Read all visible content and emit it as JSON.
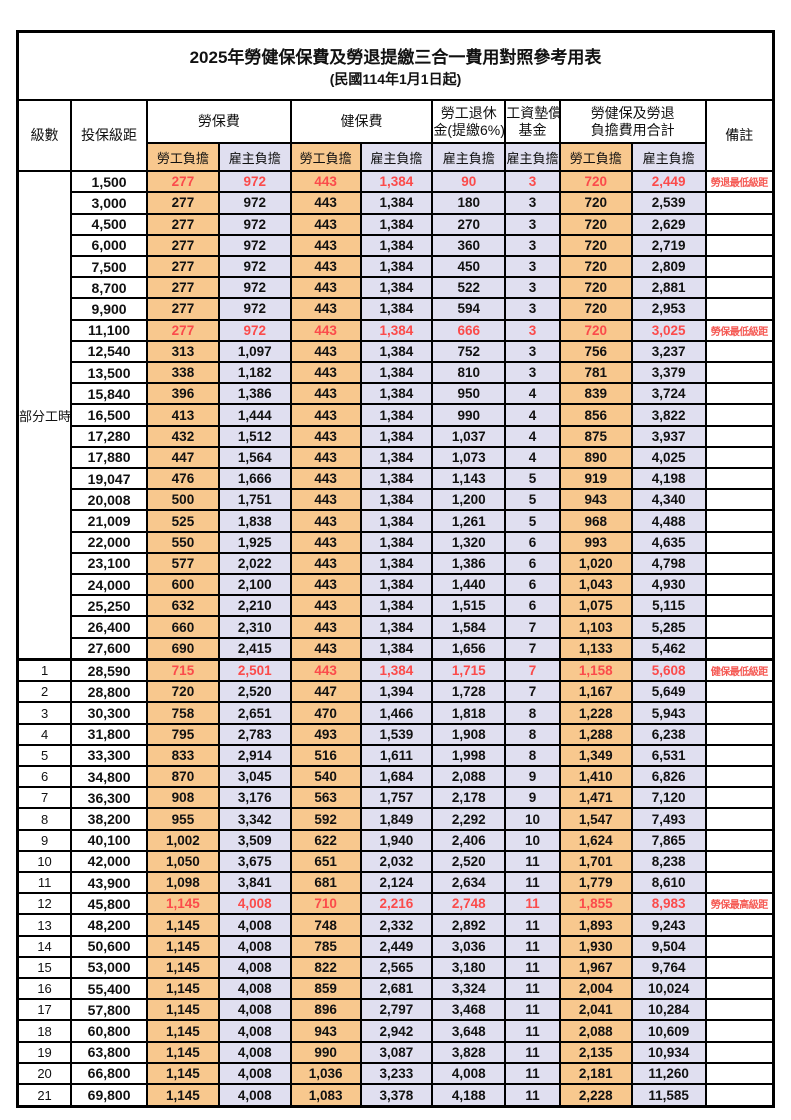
{
  "title": "2025年勞健保保費及勞退提繳三合一費用對照參考用表",
  "subtitle": "(民國114年1月1日起)",
  "header": {
    "level": "級數",
    "bracket": "投保級距",
    "labor_insurance": "勞保費",
    "health_insurance": "健保費",
    "pension_line1": "勞工退休",
    "pension_line2": "金(提繳6%)",
    "wage_fund_line1": "工資墊償",
    "wage_fund_line2": "基金",
    "total_line1": "勞健保及勞退",
    "total_line2": "負擔費用合計",
    "remark": "備註",
    "employee": "勞工負擔",
    "employer": "雇主負擔"
  },
  "colors": {
    "employee_bg": "#F8C88E",
    "employer_bg": "#E0DFF0",
    "highlight_text": "#FB4B4B",
    "remark_text": "#F55B55",
    "border": "#000000"
  },
  "part_time_label": "部分工時",
  "part_time_span": 23,
  "rows": [
    {
      "level": "",
      "bracket": "1,500",
      "values": [
        "277",
        "972",
        "443",
        "1,384",
        "90",
        "3",
        "720",
        "2,449"
      ],
      "remark": "勞退最低級距",
      "highlight": true
    },
    {
      "level": "",
      "bracket": "3,000",
      "values": [
        "277",
        "972",
        "443",
        "1,384",
        "180",
        "3",
        "720",
        "2,539"
      ],
      "remark": "",
      "highlight": false
    },
    {
      "level": "",
      "bracket": "4,500",
      "values": [
        "277",
        "972",
        "443",
        "1,384",
        "270",
        "3",
        "720",
        "2,629"
      ],
      "remark": "",
      "highlight": false
    },
    {
      "level": "",
      "bracket": "6,000",
      "values": [
        "277",
        "972",
        "443",
        "1,384",
        "360",
        "3",
        "720",
        "2,719"
      ],
      "remark": "",
      "highlight": false
    },
    {
      "level": "",
      "bracket": "7,500",
      "values": [
        "277",
        "972",
        "443",
        "1,384",
        "450",
        "3",
        "720",
        "2,809"
      ],
      "remark": "",
      "highlight": false
    },
    {
      "level": "",
      "bracket": "8,700",
      "values": [
        "277",
        "972",
        "443",
        "1,384",
        "522",
        "3",
        "720",
        "2,881"
      ],
      "remark": "",
      "highlight": false
    },
    {
      "level": "",
      "bracket": "9,900",
      "values": [
        "277",
        "972",
        "443",
        "1,384",
        "594",
        "3",
        "720",
        "2,953"
      ],
      "remark": "",
      "highlight": false
    },
    {
      "level": "",
      "bracket": "11,100",
      "values": [
        "277",
        "972",
        "443",
        "1,384",
        "666",
        "3",
        "720",
        "3,025"
      ],
      "remark": "勞保最低級距",
      "highlight": true
    },
    {
      "level": "",
      "bracket": "12,540",
      "values": [
        "313",
        "1,097",
        "443",
        "1,384",
        "752",
        "3",
        "756",
        "3,237"
      ],
      "remark": "",
      "highlight": false
    },
    {
      "level": "",
      "bracket": "13,500",
      "values": [
        "338",
        "1,182",
        "443",
        "1,384",
        "810",
        "3",
        "781",
        "3,379"
      ],
      "remark": "",
      "highlight": false
    },
    {
      "level": "",
      "bracket": "15,840",
      "values": [
        "396",
        "1,386",
        "443",
        "1,384",
        "950",
        "4",
        "839",
        "3,724"
      ],
      "remark": "",
      "highlight": false
    },
    {
      "level": "",
      "bracket": "16,500",
      "values": [
        "413",
        "1,444",
        "443",
        "1,384",
        "990",
        "4",
        "856",
        "3,822"
      ],
      "remark": "",
      "highlight": false
    },
    {
      "level": "",
      "bracket": "17,280",
      "values": [
        "432",
        "1,512",
        "443",
        "1,384",
        "1,037",
        "4",
        "875",
        "3,937"
      ],
      "remark": "",
      "highlight": false
    },
    {
      "level": "",
      "bracket": "17,880",
      "values": [
        "447",
        "1,564",
        "443",
        "1,384",
        "1,073",
        "4",
        "890",
        "4,025"
      ],
      "remark": "",
      "highlight": false
    },
    {
      "level": "",
      "bracket": "19,047",
      "values": [
        "476",
        "1,666",
        "443",
        "1,384",
        "1,143",
        "5",
        "919",
        "4,198"
      ],
      "remark": "",
      "highlight": false
    },
    {
      "level": "",
      "bracket": "20,008",
      "values": [
        "500",
        "1,751",
        "443",
        "1,384",
        "1,200",
        "5",
        "943",
        "4,340"
      ],
      "remark": "",
      "highlight": false
    },
    {
      "level": "",
      "bracket": "21,009",
      "values": [
        "525",
        "1,838",
        "443",
        "1,384",
        "1,261",
        "5",
        "968",
        "4,488"
      ],
      "remark": "",
      "highlight": false
    },
    {
      "level": "",
      "bracket": "22,000",
      "values": [
        "550",
        "1,925",
        "443",
        "1,384",
        "1,320",
        "6",
        "993",
        "4,635"
      ],
      "remark": "",
      "highlight": false
    },
    {
      "level": "",
      "bracket": "23,100",
      "values": [
        "577",
        "2,022",
        "443",
        "1,384",
        "1,386",
        "6",
        "1,020",
        "4,798"
      ],
      "remark": "",
      "highlight": false
    },
    {
      "level": "",
      "bracket": "24,000",
      "values": [
        "600",
        "2,100",
        "443",
        "1,384",
        "1,440",
        "6",
        "1,043",
        "4,930"
      ],
      "remark": "",
      "highlight": false
    },
    {
      "level": "",
      "bracket": "25,250",
      "values": [
        "632",
        "2,210",
        "443",
        "1,384",
        "1,515",
        "6",
        "1,075",
        "5,115"
      ],
      "remark": "",
      "highlight": false
    },
    {
      "level": "",
      "bracket": "26,400",
      "values": [
        "660",
        "2,310",
        "443",
        "1,384",
        "1,584",
        "7",
        "1,103",
        "5,285"
      ],
      "remark": "",
      "highlight": false
    },
    {
      "level": "",
      "bracket": "27,600",
      "values": [
        "690",
        "2,415",
        "443",
        "1,384",
        "1,656",
        "7",
        "1,133",
        "5,462"
      ],
      "remark": "",
      "highlight": false
    },
    {
      "level": "1",
      "bracket": "28,590",
      "values": [
        "715",
        "2,501",
        "443",
        "1,384",
        "1,715",
        "7",
        "1,158",
        "5,608"
      ],
      "remark": "健保最低級距",
      "highlight": true,
      "group_break": true
    },
    {
      "level": "2",
      "bracket": "28,800",
      "values": [
        "720",
        "2,520",
        "447",
        "1,394",
        "1,728",
        "7",
        "1,167",
        "5,649"
      ],
      "remark": "",
      "highlight": false
    },
    {
      "level": "3",
      "bracket": "30,300",
      "values": [
        "758",
        "2,651",
        "470",
        "1,466",
        "1,818",
        "8",
        "1,228",
        "5,943"
      ],
      "remark": "",
      "highlight": false
    },
    {
      "level": "4",
      "bracket": "31,800",
      "values": [
        "795",
        "2,783",
        "493",
        "1,539",
        "1,908",
        "8",
        "1,288",
        "6,238"
      ],
      "remark": "",
      "highlight": false
    },
    {
      "level": "5",
      "bracket": "33,300",
      "values": [
        "833",
        "2,914",
        "516",
        "1,611",
        "1,998",
        "8",
        "1,349",
        "6,531"
      ],
      "remark": "",
      "highlight": false
    },
    {
      "level": "6",
      "bracket": "34,800",
      "values": [
        "870",
        "3,045",
        "540",
        "1,684",
        "2,088",
        "9",
        "1,410",
        "6,826"
      ],
      "remark": "",
      "highlight": false
    },
    {
      "level": "7",
      "bracket": "36,300",
      "values": [
        "908",
        "3,176",
        "563",
        "1,757",
        "2,178",
        "9",
        "1,471",
        "7,120"
      ],
      "remark": "",
      "highlight": false
    },
    {
      "level": "8",
      "bracket": "38,200",
      "values": [
        "955",
        "3,342",
        "592",
        "1,849",
        "2,292",
        "10",
        "1,547",
        "7,493"
      ],
      "remark": "",
      "highlight": false
    },
    {
      "level": "9",
      "bracket": "40,100",
      "values": [
        "1,002",
        "3,509",
        "622",
        "1,940",
        "2,406",
        "10",
        "1,624",
        "7,865"
      ],
      "remark": "",
      "highlight": false
    },
    {
      "level": "10",
      "bracket": "42,000",
      "values": [
        "1,050",
        "3,675",
        "651",
        "2,032",
        "2,520",
        "11",
        "1,701",
        "8,238"
      ],
      "remark": "",
      "highlight": false
    },
    {
      "level": "11",
      "bracket": "43,900",
      "values": [
        "1,098",
        "3,841",
        "681",
        "2,124",
        "2,634",
        "11",
        "1,779",
        "8,610"
      ],
      "remark": "",
      "highlight": false
    },
    {
      "level": "12",
      "bracket": "45,800",
      "values": [
        "1,145",
        "4,008",
        "710",
        "2,216",
        "2,748",
        "11",
        "1,855",
        "8,983"
      ],
      "remark": "勞保最高級距",
      "highlight": true
    },
    {
      "level": "13",
      "bracket": "48,200",
      "values": [
        "1,145",
        "4,008",
        "748",
        "2,332",
        "2,892",
        "11",
        "1,893",
        "9,243"
      ],
      "remark": "",
      "highlight": false
    },
    {
      "level": "14",
      "bracket": "50,600",
      "values": [
        "1,145",
        "4,008",
        "785",
        "2,449",
        "3,036",
        "11",
        "1,930",
        "9,504"
      ],
      "remark": "",
      "highlight": false
    },
    {
      "level": "15",
      "bracket": "53,000",
      "values": [
        "1,145",
        "4,008",
        "822",
        "2,565",
        "3,180",
        "11",
        "1,967",
        "9,764"
      ],
      "remark": "",
      "highlight": false
    },
    {
      "level": "16",
      "bracket": "55,400",
      "values": [
        "1,145",
        "4,008",
        "859",
        "2,681",
        "3,324",
        "11",
        "2,004",
        "10,024"
      ],
      "remark": "",
      "highlight": false
    },
    {
      "level": "17",
      "bracket": "57,800",
      "values": [
        "1,145",
        "4,008",
        "896",
        "2,797",
        "3,468",
        "11",
        "2,041",
        "10,284"
      ],
      "remark": "",
      "highlight": false
    },
    {
      "level": "18",
      "bracket": "60,800",
      "values": [
        "1,145",
        "4,008",
        "943",
        "2,942",
        "3,648",
        "11",
        "2,088",
        "10,609"
      ],
      "remark": "",
      "highlight": false
    },
    {
      "level": "19",
      "bracket": "63,800",
      "values": [
        "1,145",
        "4,008",
        "990",
        "3,087",
        "3,828",
        "11",
        "2,135",
        "10,934"
      ],
      "remark": "",
      "highlight": false
    },
    {
      "level": "20",
      "bracket": "66,800",
      "values": [
        "1,145",
        "4,008",
        "1,036",
        "3,233",
        "4,008",
        "11",
        "2,181",
        "11,260"
      ],
      "remark": "",
      "highlight": false
    },
    {
      "level": "21",
      "bracket": "69,800",
      "values": [
        "1,145",
        "4,008",
        "1,083",
        "3,378",
        "4,188",
        "11",
        "2,228",
        "11,585"
      ],
      "remark": "",
      "highlight": false
    }
  ]
}
